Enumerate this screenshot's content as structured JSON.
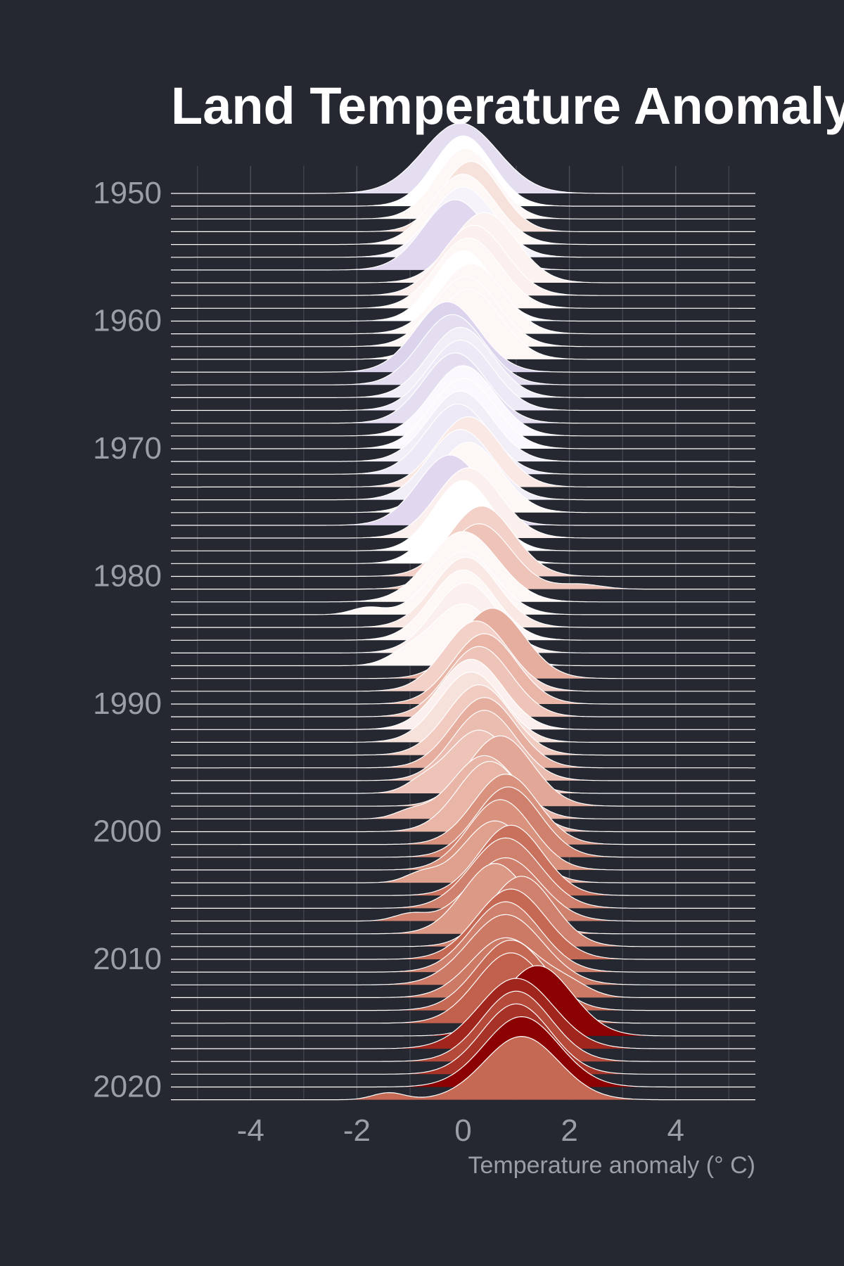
{
  "chart_data": {
    "type": "ridgeline",
    "title": "Land Temperature Anomaly",
    "xlabel": "Temperature anomaly (° C)",
    "ylabel": "",
    "xlim": [
      -5.5,
      5.5
    ],
    "x_ticks": [
      -4,
      -2,
      0,
      2,
      4
    ],
    "x_tick_labels": [
      "-4",
      "-2",
      "0",
      "2",
      "4"
    ],
    "y_ticks": [
      1950,
      1960,
      1970,
      1980,
      1990,
      2000,
      2010,
      2020
    ],
    "y_tick_labels": [
      "1950",
      "1960",
      "1970",
      "1980",
      "1990",
      "2000",
      "2010",
      "2020"
    ],
    "grid": true,
    "legend": "none",
    "colors": {
      "background": "#252831",
      "outline": "#ffffff",
      "grid": "#4b4e58",
      "text": "#9c9ea6",
      "title": "#ffffff",
      "cold": "#d8cdea",
      "neutral": "#ffffff",
      "warm": "#8b0000"
    },
    "series": [
      {
        "year": 1950,
        "mean": -0.3,
        "components": [
          {
            "mu": -0.05,
            "sd": 0.7,
            "w": 1
          }
        ]
      },
      {
        "year": 1951,
        "mean": 0.0,
        "components": [
          {
            "mu": 0.0,
            "sd": 0.55,
            "w": 1
          }
        ]
      },
      {
        "year": 1952,
        "mean": 0.05,
        "components": [
          {
            "mu": 0.05,
            "sd": 0.55,
            "w": 1
          }
        ]
      },
      {
        "year": 1953,
        "mean": 0.2,
        "components": [
          {
            "mu": 0.15,
            "sd": 0.55,
            "w": 1
          }
        ]
      },
      {
        "year": 1954,
        "mean": 0.05,
        "components": [
          {
            "mu": 0.0,
            "sd": 0.6,
            "w": 1
          }
        ]
      },
      {
        "year": 1955,
        "mean": -0.1,
        "components": [
          {
            "mu": 0.0,
            "sd": 0.6,
            "w": 1
          }
        ]
      },
      {
        "year": 1956,
        "mean": -0.35,
        "components": [
          {
            "mu": -0.15,
            "sd": 0.6,
            "w": 1
          }
        ]
      },
      {
        "year": 1957,
        "mean": 0.08,
        "components": [
          {
            "mu": 0.4,
            "sd": 0.6,
            "w": 1
          }
        ]
      },
      {
        "year": 1958,
        "mean": 0.1,
        "components": [
          {
            "mu": 0.2,
            "sd": 0.6,
            "w": 1
          }
        ]
      },
      {
        "year": 1959,
        "mean": 0.05,
        "components": [
          {
            "mu": 0.1,
            "sd": 0.6,
            "w": 1
          }
        ]
      },
      {
        "year": 1960,
        "mean": 0.0,
        "components": [
          {
            "mu": 0.0,
            "sd": 0.55,
            "w": 1
          }
        ]
      },
      {
        "year": 1961,
        "mean": 0.05,
        "components": [
          {
            "mu": 0.15,
            "sd": 0.6,
            "w": 1
          }
        ]
      },
      {
        "year": 1962,
        "mean": 0.05,
        "components": [
          {
            "mu": 0.05,
            "sd": 0.6,
            "w": 1
          }
        ]
      },
      {
        "year": 1963,
        "mean": 0.05,
        "components": [
          {
            "mu": 0.1,
            "sd": 0.6,
            "w": 1
          }
        ]
      },
      {
        "year": 1964,
        "mean": -0.4,
        "components": [
          {
            "mu": -0.3,
            "sd": 0.6,
            "w": 1
          }
        ]
      },
      {
        "year": 1965,
        "mean": -0.3,
        "components": [
          {
            "mu": -0.2,
            "sd": 0.6,
            "w": 1
          }
        ]
      },
      {
        "year": 1966,
        "mean": -0.15,
        "components": [
          {
            "mu": -0.05,
            "sd": 0.6,
            "w": 1
          }
        ]
      },
      {
        "year": 1967,
        "mean": -0.2,
        "components": [
          {
            "mu": -0.05,
            "sd": 0.6,
            "w": 1
          }
        ]
      },
      {
        "year": 1968,
        "mean": -0.3,
        "components": [
          {
            "mu": -0.15,
            "sd": 0.6,
            "w": 1
          }
        ]
      },
      {
        "year": 1969,
        "mean": -0.05,
        "components": [
          {
            "mu": 0.0,
            "sd": 0.6,
            "w": 1
          }
        ]
      },
      {
        "year": 1970,
        "mean": -0.05,
        "components": [
          {
            "mu": 0.0,
            "sd": 0.6,
            "w": 1
          }
        ]
      },
      {
        "year": 1971,
        "mean": -0.15,
        "components": [
          {
            "mu": -0.05,
            "sd": 0.6,
            "w": 1
          }
        ]
      },
      {
        "year": 1972,
        "mean": -0.2,
        "components": [
          {
            "mu": -0.1,
            "sd": 0.6,
            "w": 1
          }
        ]
      },
      {
        "year": 1973,
        "mean": 0.15,
        "components": [
          {
            "mu": 0.1,
            "sd": 0.6,
            "w": 1
          }
        ]
      },
      {
        "year": 1974,
        "mean": -0.15,
        "components": [
          {
            "mu": -0.05,
            "sd": 0.6,
            "w": 1
          }
        ]
      },
      {
        "year": 1975,
        "mean": 0.05,
        "components": [
          {
            "mu": 0.1,
            "sd": 0.6,
            "w": 1
          }
        ]
      },
      {
        "year": 1976,
        "mean": -0.35,
        "components": [
          {
            "mu": -0.25,
            "sd": 0.6,
            "w": 1
          }
        ]
      },
      {
        "year": 1977,
        "mean": 0.1,
        "components": [
          {
            "mu": 0.1,
            "sd": 0.6,
            "w": 1
          }
        ]
      },
      {
        "year": 1978,
        "mean": 0.0,
        "components": [
          {
            "mu": 0.0,
            "sd": 0.55,
            "w": 1
          }
        ]
      },
      {
        "year": 1979,
        "mean": 0.0,
        "components": [
          {
            "mu": 0.0,
            "sd": 0.55,
            "w": 1
          }
        ]
      },
      {
        "year": 1980,
        "mean": 0.3,
        "components": [
          {
            "mu": 0.35,
            "sd": 0.6,
            "w": 1
          }
        ]
      },
      {
        "year": 1981,
        "mean": 0.4,
        "components": [
          {
            "mu": 0.3,
            "sd": 0.6,
            "w": 0.93
          },
          {
            "mu": 2.2,
            "sd": 0.4,
            "w": 0.07
          }
        ]
      },
      {
        "year": 1982,
        "mean": 0.05,
        "components": [
          {
            "mu": 0.0,
            "sd": 0.65,
            "w": 1
          }
        ]
      },
      {
        "year": 1983,
        "mean": 0.05,
        "components": [
          {
            "mu": 0.0,
            "sd": 0.6,
            "w": 0.9
          },
          {
            "mu": -1.8,
            "sd": 0.3,
            "w": 0.1
          }
        ]
      },
      {
        "year": 1984,
        "mean": 0.15,
        "components": [
          {
            "mu": 0.05,
            "sd": 0.6,
            "w": 1
          }
        ]
      },
      {
        "year": 1985,
        "mean": 0.05,
        "components": [
          {
            "mu": 0.0,
            "sd": 0.6,
            "w": 1
          }
        ]
      },
      {
        "year": 1986,
        "mean": 0.1,
        "components": [
          {
            "mu": 0.05,
            "sd": 0.6,
            "w": 1
          }
        ]
      },
      {
        "year": 1987,
        "mean": 0.05,
        "components": [
          {
            "mu": 0.0,
            "sd": 0.6,
            "w": 0.88
          },
          {
            "mu": -1.1,
            "sd": 0.35,
            "w": 0.12
          }
        ]
      },
      {
        "year": 1988,
        "mean": 0.55,
        "components": [
          {
            "mu": 0.55,
            "sd": 0.6,
            "w": 1
          }
        ]
      },
      {
        "year": 1989,
        "mean": 0.3,
        "components": [
          {
            "mu": 0.25,
            "sd": 0.6,
            "w": 1
          }
        ]
      },
      {
        "year": 1990,
        "mean": 0.5,
        "components": [
          {
            "mu": 0.4,
            "sd": 0.6,
            "w": 1
          }
        ]
      },
      {
        "year": 1991,
        "mean": 0.4,
        "components": [
          {
            "mu": 0.3,
            "sd": 0.6,
            "w": 1
          }
        ]
      },
      {
        "year": 1992,
        "mean": 0.1,
        "components": [
          {
            "mu": 0.15,
            "sd": 0.6,
            "w": 1
          }
        ]
      },
      {
        "year": 1993,
        "mean": 0.2,
        "components": [
          {
            "mu": 0.15,
            "sd": 0.6,
            "w": 1
          }
        ]
      },
      {
        "year": 1994,
        "mean": 0.35,
        "components": [
          {
            "mu": 0.3,
            "sd": 0.6,
            "w": 1
          }
        ]
      },
      {
        "year": 1995,
        "mean": 0.55,
        "components": [
          {
            "mu": 0.4,
            "sd": 0.6,
            "w": 1
          }
        ]
      },
      {
        "year": 1996,
        "mean": 0.45,
        "components": [
          {
            "mu": 0.4,
            "sd": 0.6,
            "w": 1
          }
        ]
      },
      {
        "year": 1997,
        "mean": 0.4,
        "components": [
          {
            "mu": 0.3,
            "sd": 0.6,
            "w": 0.9
          },
          {
            "mu": -0.8,
            "sd": 0.3,
            "w": 0.1
          }
        ]
      },
      {
        "year": 1998,
        "mean": 0.6,
        "components": [
          {
            "mu": 0.7,
            "sd": 0.6,
            "w": 1
          }
        ]
      },
      {
        "year": 1999,
        "mean": 0.5,
        "components": [
          {
            "mu": 0.4,
            "sd": 0.6,
            "w": 0.9
          },
          {
            "mu": -1.0,
            "sd": 0.3,
            "w": 0.1
          }
        ]
      },
      {
        "year": 2000,
        "mean": 0.5,
        "components": [
          {
            "mu": 0.5,
            "sd": 0.6,
            "w": 1
          }
        ]
      },
      {
        "year": 2001,
        "mean": 0.75,
        "components": [
          {
            "mu": 0.8,
            "sd": 0.6,
            "w": 1
          }
        ]
      },
      {
        "year": 2002,
        "mean": 0.85,
        "components": [
          {
            "mu": 0.85,
            "sd": 0.6,
            "w": 1
          }
        ]
      },
      {
        "year": 2003,
        "mean": 0.75,
        "components": [
          {
            "mu": 0.7,
            "sd": 0.6,
            "w": 1
          }
        ]
      },
      {
        "year": 2004,
        "mean": 0.65,
        "components": [
          {
            "mu": 0.6,
            "sd": 0.6,
            "w": 0.88
          },
          {
            "mu": -0.8,
            "sd": 0.3,
            "w": 0.12
          }
        ]
      },
      {
        "year": 2005,
        "mean": 0.95,
        "components": [
          {
            "mu": 0.9,
            "sd": 0.6,
            "w": 1
          }
        ]
      },
      {
        "year": 2006,
        "mean": 0.85,
        "components": [
          {
            "mu": 0.8,
            "sd": 0.65,
            "w": 1
          }
        ]
      },
      {
        "year": 2007,
        "mean": 0.85,
        "components": [
          {
            "mu": 0.8,
            "sd": 0.65,
            "w": 0.9
          },
          {
            "mu": -1.0,
            "sd": 0.3,
            "w": 0.1
          }
        ]
      },
      {
        "year": 2008,
        "mean": 0.7,
        "components": [
          {
            "mu": 0.6,
            "sd": 0.6,
            "w": 1
          }
        ]
      },
      {
        "year": 2009,
        "mean": 0.85,
        "components": [
          {
            "mu": 1.1,
            "sd": 0.6,
            "w": 1
          }
        ]
      },
      {
        "year": 2010,
        "mean": 1.0,
        "components": [
          {
            "mu": 0.9,
            "sd": 0.65,
            "w": 1
          }
        ]
      },
      {
        "year": 2011,
        "mean": 0.85,
        "components": [
          {
            "mu": 0.8,
            "sd": 0.65,
            "w": 1
          }
        ]
      },
      {
        "year": 2012,
        "mean": 0.9,
        "components": [
          {
            "mu": 0.8,
            "sd": 0.7,
            "w": 1
          }
        ]
      },
      {
        "year": 2013,
        "mean": 0.9,
        "components": [
          {
            "mu": 0.8,
            "sd": 0.65,
            "w": 0.85
          },
          {
            "mu": 2.0,
            "sd": 0.4,
            "w": 0.15
          }
        ]
      },
      {
        "year": 2014,
        "mean": 1.0,
        "components": [
          {
            "mu": 0.9,
            "sd": 0.65,
            "w": 1
          }
        ]
      },
      {
        "year": 2015,
        "mean": 1.05,
        "components": [
          {
            "mu": 0.9,
            "sd": 0.65,
            "w": 1
          }
        ]
      },
      {
        "year": 2016,
        "mean": 1.45,
        "components": [
          {
            "mu": 1.4,
            "sd": 0.65,
            "w": 1
          }
        ]
      },
      {
        "year": 2017,
        "mean": 1.3,
        "components": [
          {
            "mu": 1.0,
            "sd": 0.7,
            "w": 1
          }
        ]
      },
      {
        "year": 2018,
        "mean": 1.15,
        "components": [
          {
            "mu": 1.0,
            "sd": 0.65,
            "w": 1
          }
        ]
      },
      {
        "year": 2019,
        "mean": 1.25,
        "components": [
          {
            "mu": 1.0,
            "sd": 0.65,
            "w": 1
          }
        ]
      },
      {
        "year": 2020,
        "mean": 1.45,
        "components": [
          {
            "mu": 1.1,
            "sd": 0.7,
            "w": 1
          }
        ]
      },
      {
        "year": 2021,
        "mean": 1.0,
        "components": [
          {
            "mu": 1.1,
            "sd": 0.7,
            "w": 0.9
          },
          {
            "mu": -1.4,
            "sd": 0.3,
            "w": 0.1
          }
        ]
      }
    ]
  }
}
